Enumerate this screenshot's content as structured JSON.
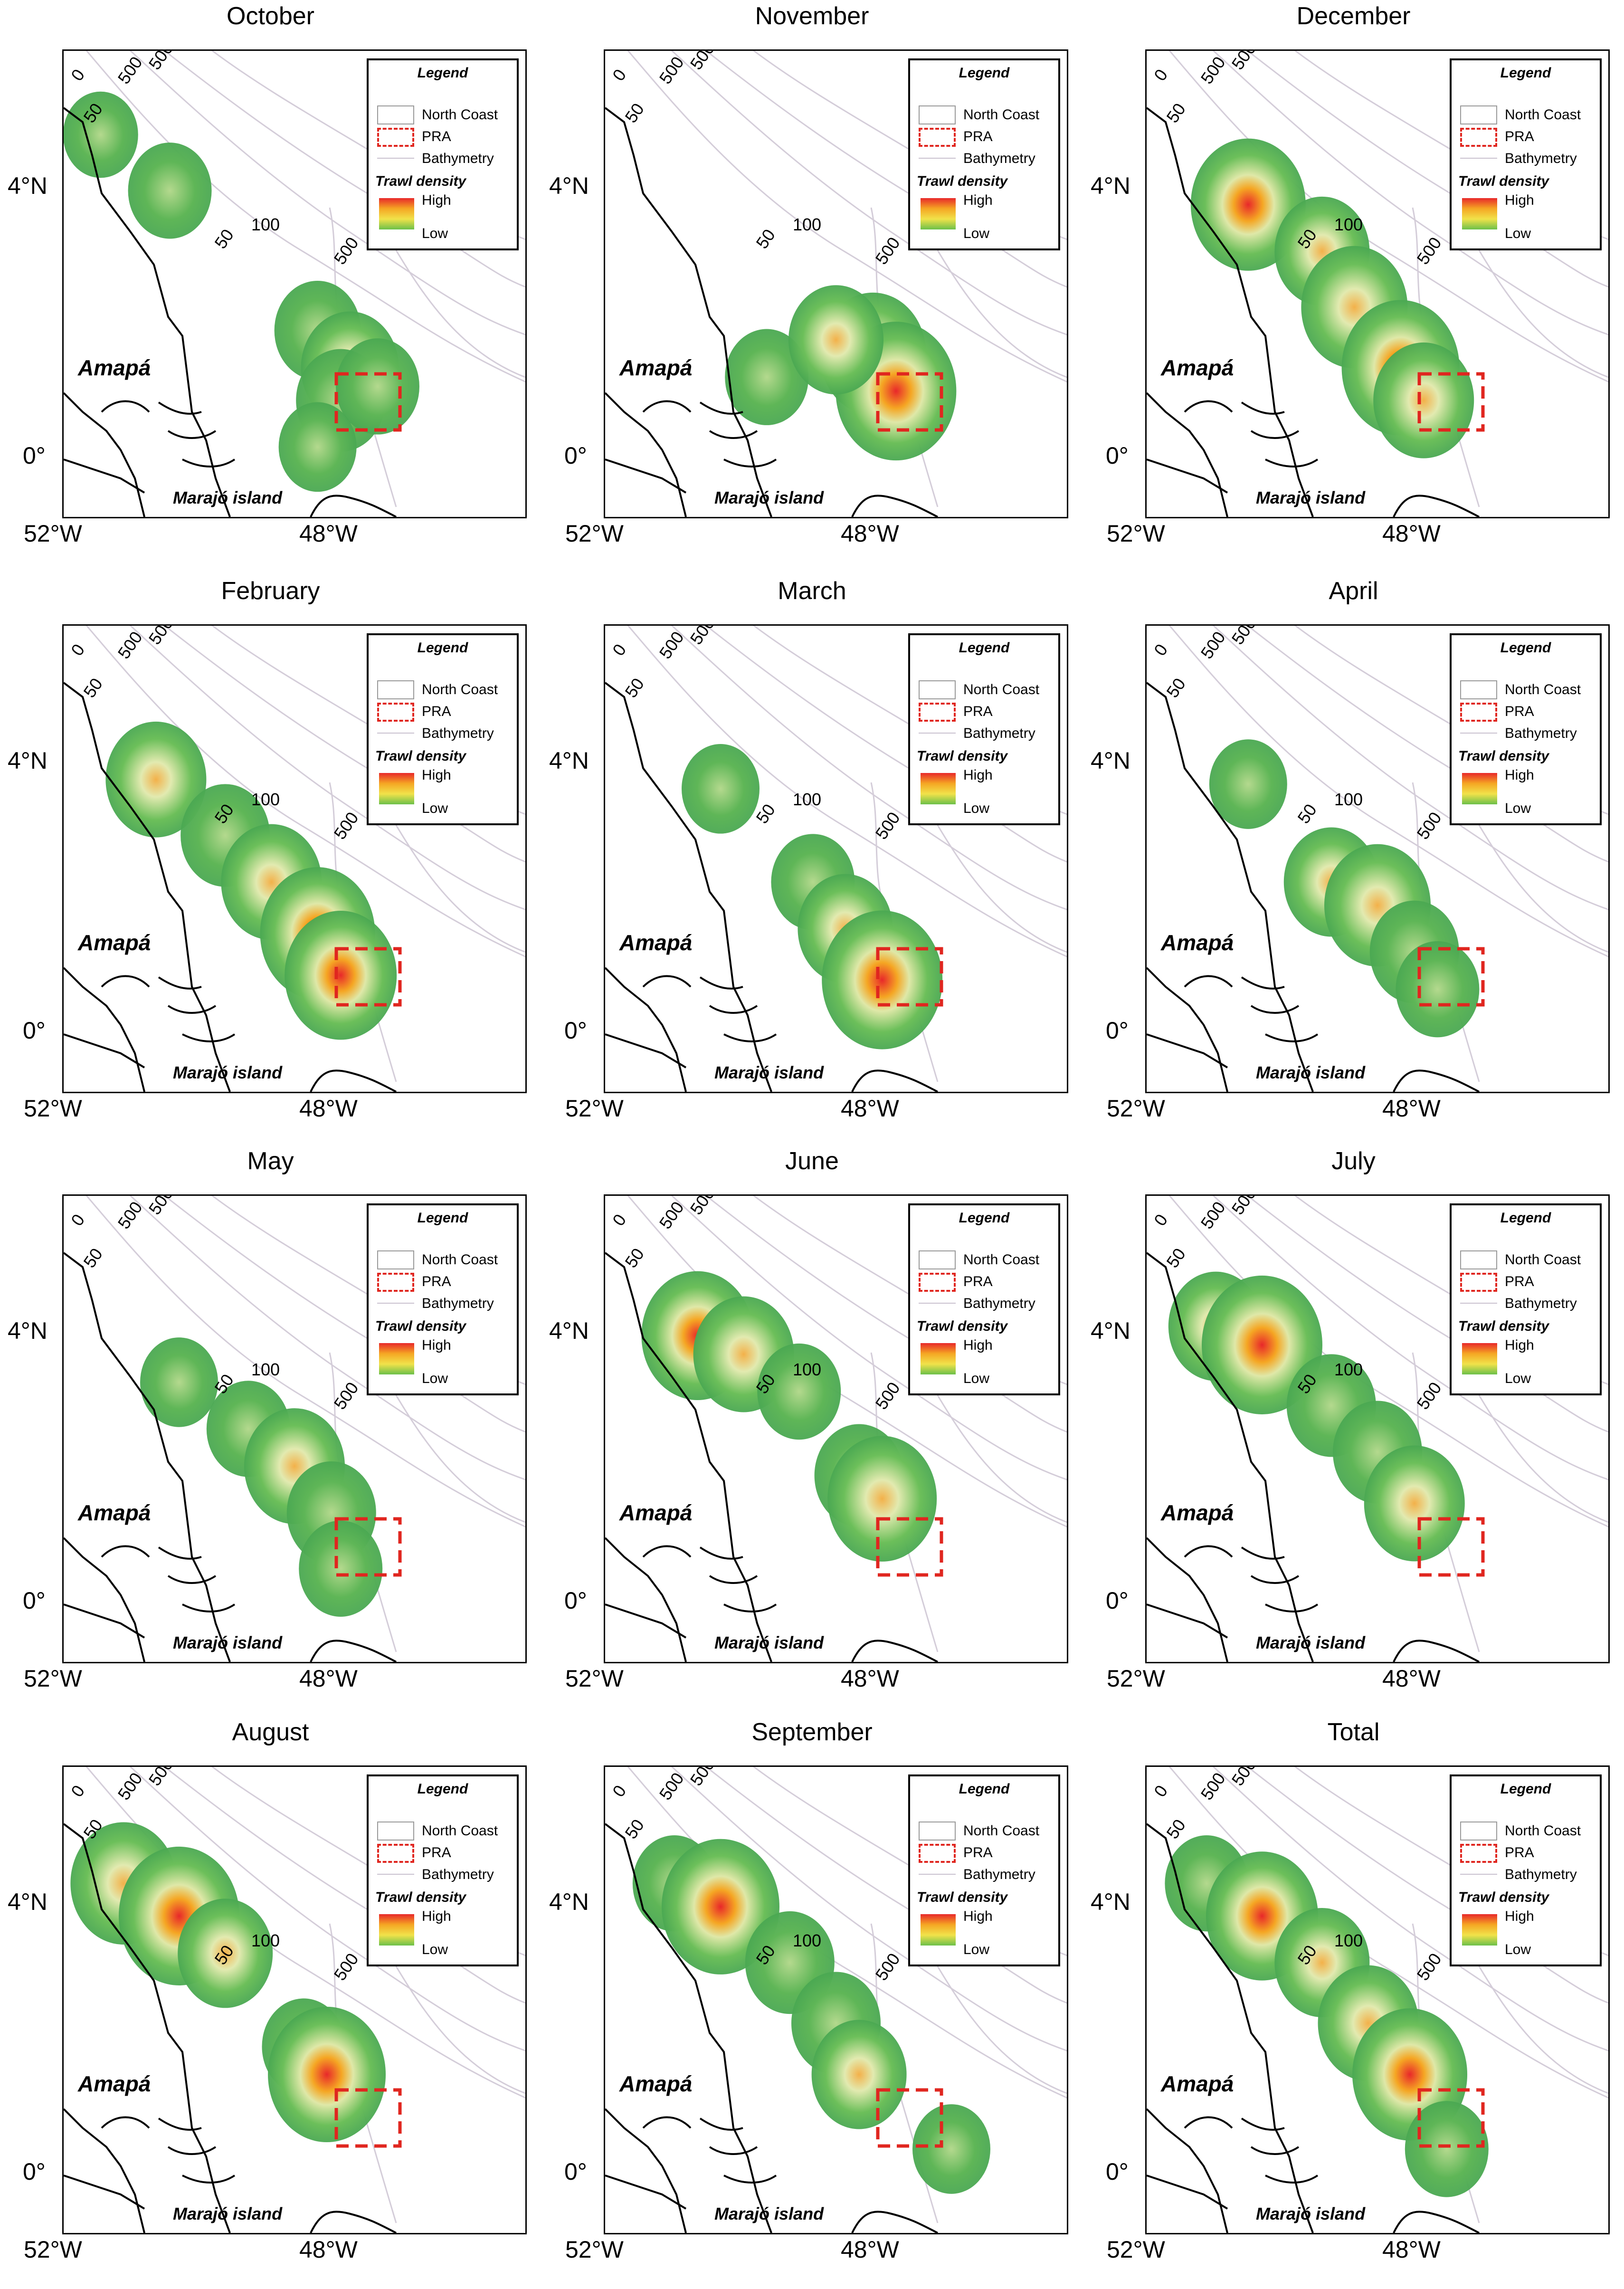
{
  "legend": {
    "title": "Legend",
    "north_coast": "North Coast",
    "pra": "PRA",
    "bathymetry": "Bathymetry",
    "trawl_density": "Trawl density",
    "high": "High",
    "low": "Low",
    "pra_color": "#e0261f",
    "bathymetry_color": "#c9c1cf",
    "density_high_color": "#e8282a",
    "density_low_color": "#6cc04a"
  },
  "labels": {
    "region": "Amapá",
    "island": "Marajó island",
    "lat_4": "4°N",
    "lat_0": "0°",
    "lon_52": "52°W",
    "lon_48": "48°W",
    "depth_0": "0",
    "depth_50": "50",
    "depth_100": "100",
    "depth_500": "500"
  },
  "panels": [
    {
      "title": "October",
      "density": [
        [
          0.08,
          0.18,
          0.15
        ],
        [
          0.23,
          0.3,
          0.3
        ],
        [
          0.55,
          0.6,
          0.35
        ],
        [
          0.62,
          0.68,
          0.55
        ],
        [
          0.6,
          0.75,
          0.4
        ],
        [
          0.68,
          0.72,
          0.3
        ],
        [
          0.55,
          0.85,
          0.2
        ]
      ]
    },
    {
      "title": "November",
      "density": [
        [
          0.35,
          0.7,
          0.3
        ],
        [
          0.58,
          0.65,
          0.7
        ],
        [
          0.63,
          0.73,
          0.95
        ],
        [
          0.5,
          0.62,
          0.5
        ]
      ]
    },
    {
      "title": "December",
      "density": [
        [
          0.22,
          0.33,
          0.85
        ],
        [
          0.38,
          0.43,
          0.5
        ],
        [
          0.45,
          0.55,
          0.7
        ],
        [
          0.55,
          0.68,
          0.9
        ],
        [
          0.6,
          0.75,
          0.6
        ]
      ]
    },
    {
      "title": "February",
      "density": [
        [
          0.2,
          0.33,
          0.6
        ],
        [
          0.35,
          0.45,
          0.4
        ],
        [
          0.45,
          0.55,
          0.6
        ],
        [
          0.55,
          0.66,
          0.85
        ],
        [
          0.6,
          0.75,
          0.8
        ]
      ]
    },
    {
      "title": "March",
      "density": [
        [
          0.25,
          0.35,
          0.2
        ],
        [
          0.45,
          0.55,
          0.3
        ],
        [
          0.52,
          0.65,
          0.5
        ],
        [
          0.6,
          0.76,
          0.95
        ]
      ]
    },
    {
      "title": "April",
      "density": [
        [
          0.22,
          0.34,
          0.2
        ],
        [
          0.4,
          0.55,
          0.5
        ],
        [
          0.5,
          0.6,
          0.7
        ],
        [
          0.58,
          0.7,
          0.4
        ],
        [
          0.63,
          0.78,
          0.3
        ]
      ]
    },
    {
      "title": "May",
      "density": [
        [
          0.25,
          0.4,
          0.2
        ],
        [
          0.4,
          0.5,
          0.3
        ],
        [
          0.5,
          0.58,
          0.6
        ],
        [
          0.58,
          0.68,
          0.4
        ],
        [
          0.6,
          0.8,
          0.3
        ]
      ]
    },
    {
      "title": "June",
      "density": [
        [
          0.2,
          0.3,
          0.8
        ],
        [
          0.3,
          0.34,
          0.6
        ],
        [
          0.42,
          0.42,
          0.3
        ],
        [
          0.55,
          0.6,
          0.4
        ],
        [
          0.6,
          0.65,
          0.75
        ]
      ]
    },
    {
      "title": "July",
      "density": [
        [
          0.15,
          0.28,
          0.5
        ],
        [
          0.25,
          0.32,
          0.95
        ],
        [
          0.4,
          0.45,
          0.4
        ],
        [
          0.5,
          0.55,
          0.4
        ],
        [
          0.58,
          0.66,
          0.6
        ]
      ]
    },
    {
      "title": "August",
      "density": [
        [
          0.13,
          0.25,
          0.7
        ],
        [
          0.25,
          0.32,
          0.95
        ],
        [
          0.35,
          0.4,
          0.5
        ],
        [
          0.52,
          0.6,
          0.3
        ],
        [
          0.57,
          0.66,
          0.9
        ]
      ]
    },
    {
      "title": "September",
      "density": [
        [
          0.15,
          0.25,
          0.3
        ],
        [
          0.25,
          0.3,
          0.9
        ],
        [
          0.4,
          0.42,
          0.4
        ],
        [
          0.5,
          0.55,
          0.4
        ],
        [
          0.55,
          0.66,
          0.5
        ],
        [
          0.75,
          0.82,
          0.2
        ]
      ]
    },
    {
      "title": "Total",
      "density": [
        [
          0.13,
          0.25,
          0.3
        ],
        [
          0.25,
          0.32,
          0.8
        ],
        [
          0.38,
          0.42,
          0.5
        ],
        [
          0.48,
          0.55,
          0.6
        ],
        [
          0.57,
          0.66,
          0.85
        ],
        [
          0.65,
          0.82,
          0.3
        ]
      ]
    }
  ]
}
